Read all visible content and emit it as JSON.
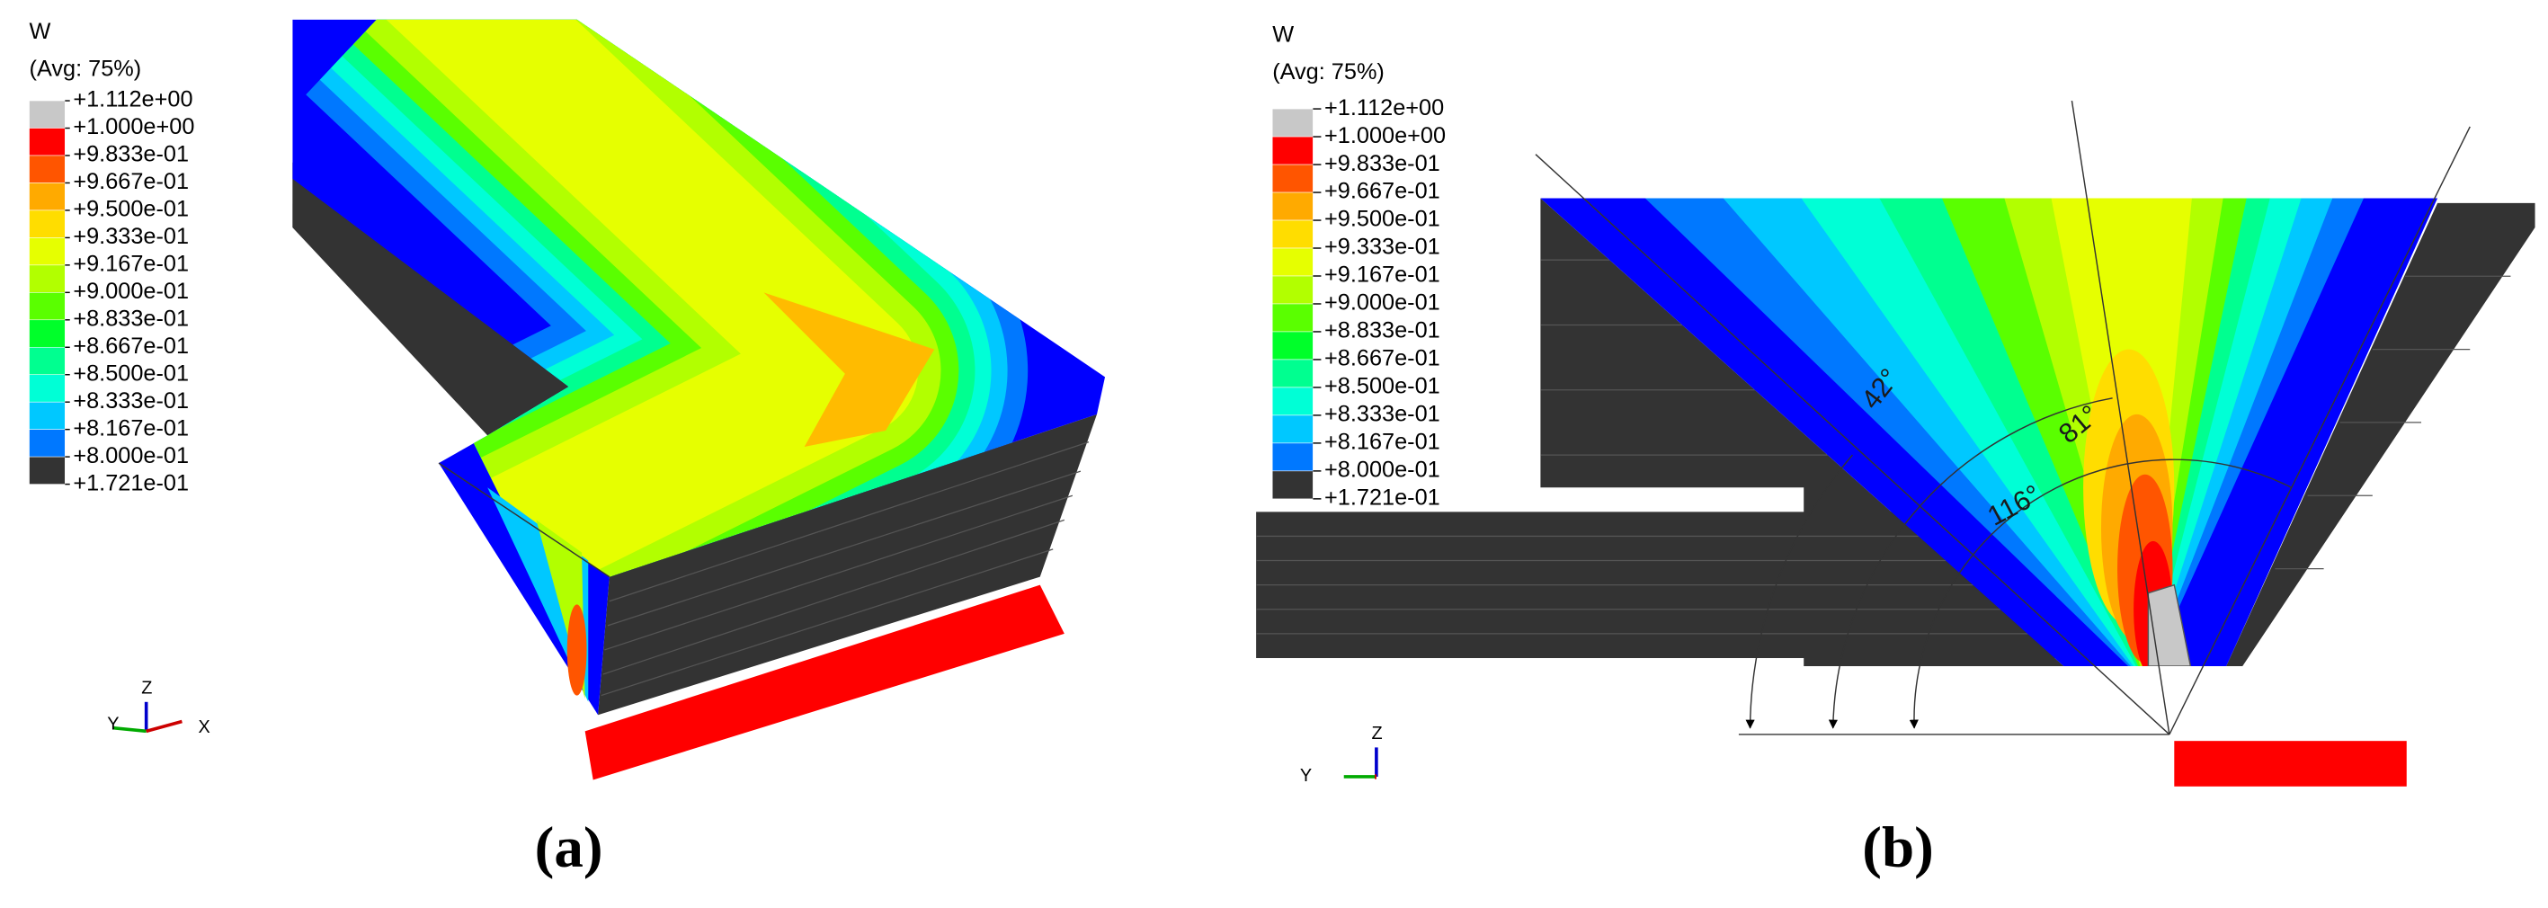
{
  "panels": [
    {
      "legend": {
        "title": "W",
        "subtitle": "(Avg: 75%)",
        "levels": [
          "+1.112e+00",
          "+1.000e+00",
          "+9.833e-01",
          "+9.667e-01",
          "+9.500e-01",
          "+9.333e-01",
          "+9.167e-01",
          "+9.000e-01",
          "+8.833e-01",
          "+8.667e-01",
          "+8.500e-01",
          "+8.333e-01",
          "+8.167e-01",
          "+8.000e-01",
          "+1.721e-01"
        ]
      },
      "triad": [
        "Z",
        "Y",
        "X"
      ],
      "caption": "(a)"
    },
    {
      "legend": {
        "title": "W",
        "subtitle": "(Avg: 75%)",
        "levels": [
          "+1.112e+00",
          "+1.000e+00",
          "+9.833e-01",
          "+9.667e-01",
          "+9.500e-01",
          "+9.333e-01",
          "+9.167e-01",
          "+9.000e-01",
          "+8.833e-01",
          "+8.667e-01",
          "+8.500e-01",
          "+8.333e-01",
          "+8.167e-01",
          "+8.000e-01",
          "+1.721e-01"
        ]
      },
      "angles": [
        "42°",
        "81°",
        "116°"
      ],
      "triad": [
        "Z",
        "Y"
      ],
      "caption": "(b)"
    }
  ]
}
